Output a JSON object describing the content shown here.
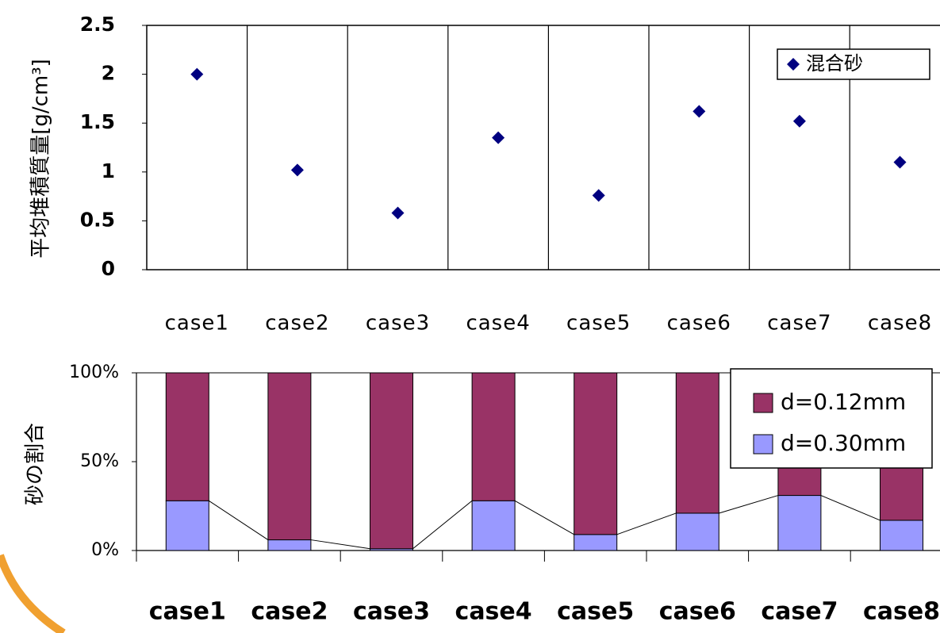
{
  "chart_data": [
    {
      "type": "scatter",
      "y_label": "平均堆積質量[g/cm³]",
      "categories": [
        "case1",
        "case2",
        "case3",
        "case4",
        "case5",
        "case6",
        "case7",
        "case8"
      ],
      "series": [
        {
          "name": "混合砂",
          "color": "#000080",
          "values": [
            2.0,
            1.02,
            0.58,
            1.35,
            0.76,
            1.62,
            1.52,
            1.1
          ]
        }
      ],
      "ylim": [
        0,
        2.5
      ],
      "yticks": [
        0,
        0.5,
        1,
        1.5,
        2,
        2.5
      ],
      "category_dividers": true,
      "legend": "upper right"
    },
    {
      "type": "bar",
      "stacked": true,
      "series_lines": true,
      "y_label": "砂の割合",
      "categories": [
        "case1",
        "case2",
        "case3",
        "case4",
        "case5",
        "case6",
        "case7",
        "case8"
      ],
      "series": [
        {
          "name": "d=0.30mm",
          "color": "#9999ff",
          "values": [
            28,
            6,
            1,
            28,
            9,
            21,
            31,
            17
          ]
        },
        {
          "name": "d=0.12mm",
          "color": "#993366",
          "values": [
            72,
            94,
            99,
            72,
            91,
            79,
            69,
            83
          ]
        }
      ],
      "ylim": [
        0,
        100
      ],
      "yticks": [
        {
          "value": 0,
          "label": "0%"
        },
        {
          "value": 50,
          "label": "50%"
        },
        {
          "value": 100,
          "label": "100%"
        }
      ],
      "legend": "upper right"
    }
  ]
}
